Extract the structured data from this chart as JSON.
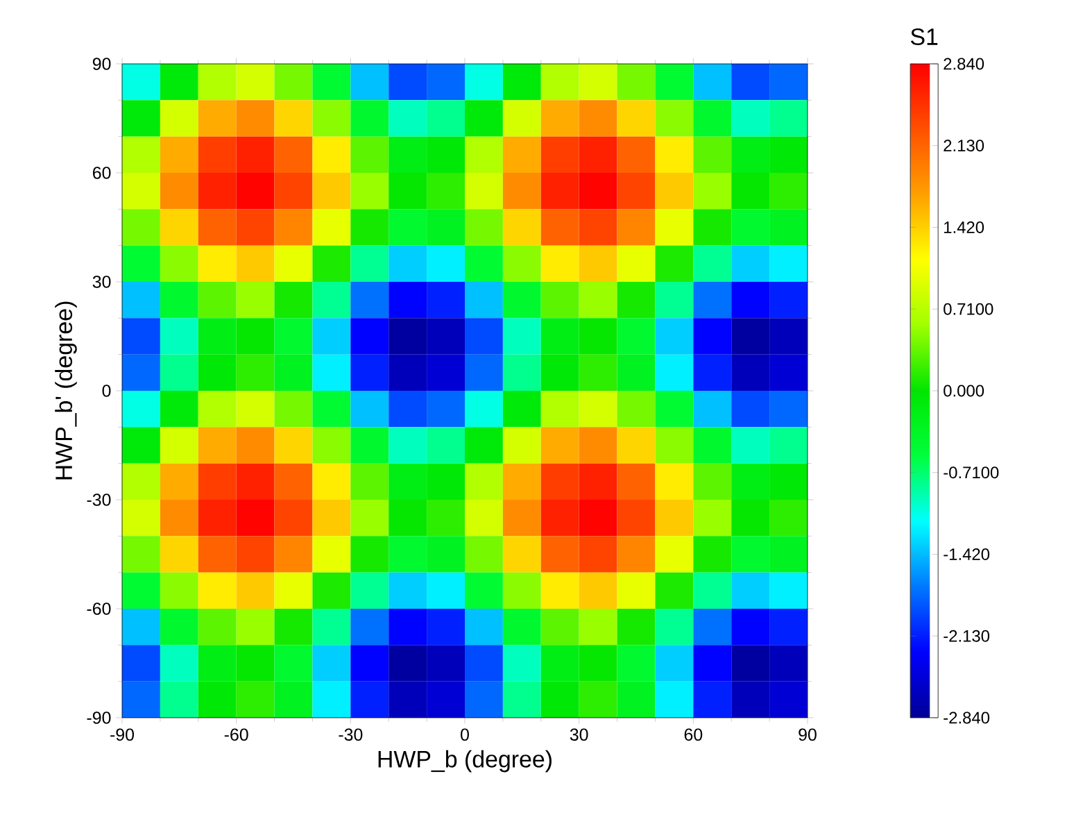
{
  "chart_data": {
    "type": "heatmap",
    "xlabel": "HWP_b (degree)",
    "ylabel": "HWP_b' (degree)",
    "clabel": "S1",
    "x": [
      -85,
      -75,
      -65,
      -55,
      -45,
      -35,
      -25,
      -15,
      -5,
      5,
      15,
      25,
      35,
      45,
      55,
      65,
      75,
      85
    ],
    "y": [
      85,
      75,
      65,
      55,
      45,
      35,
      25,
      15,
      5,
      -5,
      -15,
      -25,
      -35,
      -45,
      -55,
      -65,
      -75,
      -85
    ],
    "xlim": [
      -90,
      90
    ],
    "ylim": [
      -90,
      90
    ],
    "xticks": [
      -90,
      -60,
      -30,
      0,
      30,
      60,
      90
    ],
    "yticks": [
      -90,
      -60,
      -30,
      0,
      30,
      60,
      90
    ],
    "clim": [
      -2.84,
      2.84
    ],
    "cticks": [
      {
        "value": -2.84,
        "label": "-2.840"
      },
      {
        "value": -2.13,
        "label": "-2.130"
      },
      {
        "value": -1.42,
        "label": "-1.420"
      },
      {
        "value": -0.71,
        "label": "-0.7100"
      },
      {
        "value": 0,
        "label": "0.000"
      },
      {
        "value": 0.71,
        "label": "0.7100"
      },
      {
        "value": 1.42,
        "label": "1.420"
      },
      {
        "value": 2.13,
        "label": "2.130"
      },
      {
        "value": 2.84,
        "label": "2.840"
      }
    ],
    "cells": [
      [
        -1.06,
        -0.09,
        0.67,
        0.88,
        0.42,
        -0.48,
        -1.4,
        -1.92,
        -1.78,
        -1.06,
        -0.09,
        0.67,
        0.88,
        0.42,
        -0.48,
        -1.4,
        -1.92,
        -1.78
      ],
      [
        -0.09,
        0.88,
        1.64,
        1.85,
        1.39,
        0.49,
        -0.43,
        -0.95,
        -0.81,
        -0.09,
        0.88,
        1.64,
        1.85,
        1.39,
        0.49,
        -0.43,
        -0.95,
        -0.81
      ],
      [
        0.67,
        1.64,
        2.4,
        2.61,
        2.15,
        1.25,
        0.33,
        -0.19,
        -0.05,
        0.67,
        1.64,
        2.4,
        2.61,
        2.15,
        1.25,
        0.33,
        -0.19,
        -0.05
      ],
      [
        0.88,
        1.85,
        2.61,
        2.82,
        2.36,
        1.46,
        0.54,
        0.02,
        0.16,
        0.88,
        1.85,
        2.61,
        2.82,
        2.36,
        1.46,
        0.54,
        0.02,
        0.16
      ],
      [
        0.42,
        1.39,
        2.15,
        2.36,
        1.9,
        1.0,
        0.08,
        -0.44,
        -0.3,
        0.42,
        1.39,
        2.15,
        2.36,
        1.9,
        1.0,
        0.08,
        -0.44,
        -0.3
      ],
      [
        -0.48,
        0.49,
        1.25,
        1.46,
        1.0,
        0.1,
        -0.82,
        -1.34,
        -1.2,
        -0.48,
        0.49,
        1.25,
        1.46,
        1.0,
        0.1,
        -0.82,
        -1.34,
        -1.2
      ],
      [
        -1.4,
        -0.43,
        0.33,
        0.54,
        0.08,
        -0.82,
        -1.74,
        -2.26,
        -2.12,
        -1.4,
        -0.43,
        0.33,
        0.54,
        0.08,
        -0.82,
        -1.74,
        -2.26,
        -2.12
      ],
      [
        -1.92,
        -0.95,
        -0.19,
        0.02,
        -0.44,
        -1.34,
        -2.26,
        -2.78,
        -2.64,
        -1.92,
        -0.95,
        -0.19,
        0.02,
        -0.44,
        -1.34,
        -2.26,
        -2.78,
        -2.64
      ],
      [
        -1.78,
        -0.81,
        -0.05,
        0.16,
        -0.3,
        -1.2,
        -2.12,
        -2.64,
        -2.5,
        -1.78,
        -0.81,
        -0.05,
        0.16,
        -0.3,
        -1.2,
        -2.12,
        -2.64,
        -2.5
      ],
      [
        -1.06,
        -0.09,
        0.67,
        0.88,
        0.42,
        -0.48,
        -1.4,
        -1.92,
        -1.78,
        -1.06,
        -0.09,
        0.67,
        0.88,
        0.42,
        -0.48,
        -1.4,
        -1.92,
        -1.78
      ],
      [
        -0.09,
        0.88,
        1.64,
        1.85,
        1.39,
        0.49,
        -0.43,
        -0.95,
        -0.81,
        -0.09,
        0.88,
        1.64,
        1.85,
        1.39,
        0.49,
        -0.43,
        -0.95,
        -0.81
      ],
      [
        0.67,
        1.64,
        2.4,
        2.61,
        2.15,
        1.25,
        0.33,
        -0.19,
        -0.05,
        0.67,
        1.64,
        2.4,
        2.61,
        2.15,
        1.25,
        0.33,
        -0.19,
        -0.05
      ],
      [
        0.88,
        1.85,
        2.61,
        2.82,
        2.36,
        1.46,
        0.54,
        0.02,
        0.16,
        0.88,
        1.85,
        2.61,
        2.82,
        2.36,
        1.46,
        0.54,
        0.02,
        0.16
      ],
      [
        0.42,
        1.39,
        2.15,
        2.36,
        1.9,
        1.0,
        0.08,
        -0.44,
        -0.3,
        0.42,
        1.39,
        2.15,
        2.36,
        1.9,
        1.0,
        0.08,
        -0.44,
        -0.3
      ],
      [
        -0.48,
        0.49,
        1.25,
        1.46,
        1.0,
        0.1,
        -0.82,
        -1.34,
        -1.2,
        -0.48,
        0.49,
        1.25,
        1.46,
        1.0,
        0.1,
        -0.82,
        -1.34,
        -1.2
      ],
      [
        -1.4,
        -0.43,
        0.33,
        0.54,
        0.08,
        -0.82,
        -1.74,
        -2.26,
        -2.12,
        -1.4,
        -0.43,
        0.33,
        0.54,
        0.08,
        -0.82,
        -1.74,
        -2.26,
        -2.12
      ],
      [
        -1.92,
        -0.95,
        -0.19,
        0.02,
        -0.44,
        -1.34,
        -2.26,
        -2.78,
        -2.64,
        -1.92,
        -0.95,
        -0.19,
        0.02,
        -0.44,
        -1.34,
        -2.26,
        -2.78,
        -2.64
      ],
      [
        -1.78,
        -0.81,
        -0.05,
        0.16,
        -0.3,
        -1.2,
        -2.12,
        -2.64,
        -2.5,
        -1.78,
        -0.81,
        -0.05,
        0.16,
        -0.3,
        -1.2,
        -2.12,
        -2.64,
        -2.5
      ]
    ]
  }
}
